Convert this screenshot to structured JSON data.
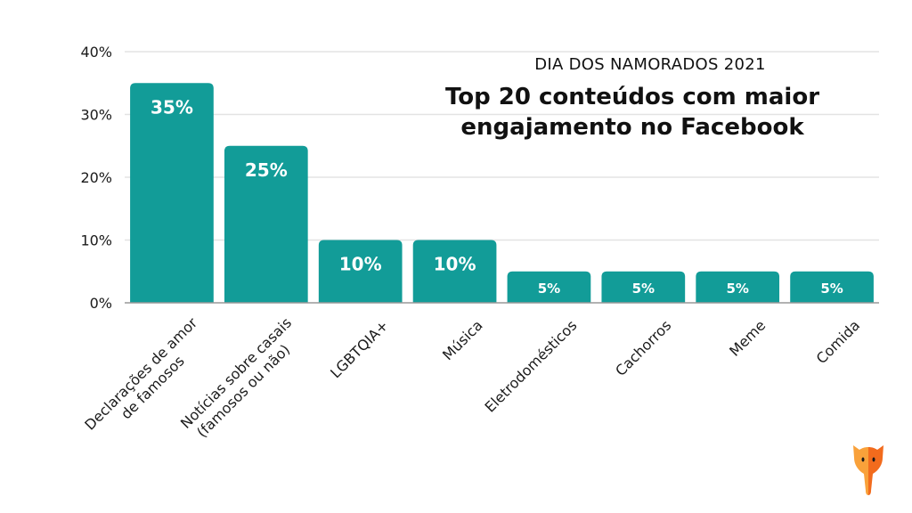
{
  "chart_data": {
    "type": "bar",
    "subtitle": "DIA DOS NAMORADOS 2021",
    "title_lines": [
      "Top 20 conteúdos com maior",
      "engajamento no Facebook"
    ],
    "categories": [
      [
        "Declarações de amor",
        "de famosos"
      ],
      [
        "Notícias sobre casais",
        "(famosos ou não)"
      ],
      [
        "LGBTQIA+"
      ],
      [
        "Música"
      ],
      [
        "Eletrodomésticos"
      ],
      [
        "Cachorros"
      ],
      [
        "Meme"
      ],
      [
        "Comida"
      ]
    ],
    "values": [
      35,
      25,
      10,
      10,
      5,
      5,
      5,
      5
    ],
    "data_labels": [
      "35%",
      "25%",
      "10%",
      "10%",
      "5%",
      "5%",
      "5%",
      "5%"
    ],
    "yticks": [
      0,
      10,
      20,
      30,
      40
    ],
    "ytick_labels": [
      "0%",
      "10%",
      "20%",
      "30%",
      "40%"
    ],
    "ylim": [
      0,
      40
    ],
    "xlabel": "",
    "ylabel": "",
    "grid": true,
    "bar_color": "#129c98",
    "grid_color": "#e3e3e3",
    "axis_color": "#999999"
  },
  "logo": {
    "icon": "fox-logo-icon",
    "colors": [
      "#f9a13a",
      "#f26b1d"
    ]
  }
}
